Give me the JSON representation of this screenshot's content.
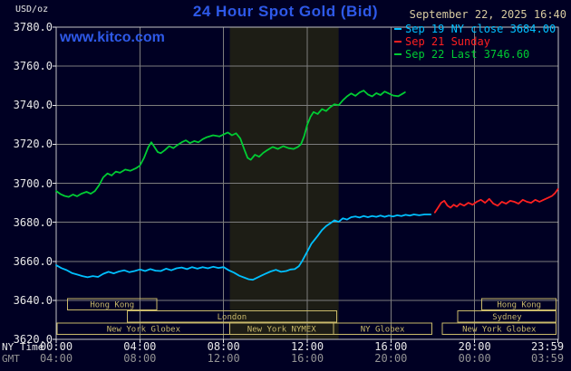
{
  "header": {
    "unit_label": "USD/oz",
    "title": "24 Hour Spot Gold (Bid)",
    "datetime": "September 22, 2025 16:40",
    "watermark": "www.kitco.com"
  },
  "colors": {
    "background": "#000023",
    "title_blue": "#2e59e8",
    "date_tan": "#d8cba0",
    "axis_white": "#e8e8e8",
    "gmt_gray": "#949494",
    "grid_gray": "#7d7d7d",
    "session_tan": "#c9b96a",
    "shade": "#1d1d15",
    "cyan_series": "#00c0ff",
    "red_series": "#ff2020",
    "green_series": "#00cc33"
  },
  "legend": [
    {
      "id": "sep19",
      "label": "Sep 19 NY close 3684.00",
      "color": "#00c0ff"
    },
    {
      "id": "sep21",
      "label": "Sep 21 Sunday",
      "color": "#ff2020"
    },
    {
      "id": "sep22",
      "label": "Sep 22 Last 3746.60",
      "color": "#00cc33"
    }
  ],
  "axis": {
    "ny_time_label": "NY Time",
    "gmt_label": "GMT"
  },
  "sessions": [
    {
      "label": "Hong Kong",
      "row": 0,
      "start_hour": 0.55,
      "end_hour": 4.8
    },
    {
      "label": "Hong Kong",
      "row": 0,
      "start_hour": 20.35,
      "end_hour": 23.9
    },
    {
      "label": "London",
      "row": 1,
      "start_hour": 3.4,
      "end_hour": 13.4
    },
    {
      "label": "Sydney",
      "row": 1,
      "start_hour": 19.2,
      "end_hour": 23.9
    },
    {
      "label": "New York Globex",
      "row": 2,
      "start_hour": 0.05,
      "end_hour": 8.3
    },
    {
      "label": "New York NYMEX",
      "row": 2,
      "start_hour": 8.3,
      "end_hour": 13.25
    },
    {
      "label": "NY Globex",
      "row": 2,
      "start_hour": 13.25,
      "end_hour": 17.95
    },
    {
      "label": "New York Globex",
      "row": 2,
      "start_hour": 18.45,
      "end_hour": 23.9
    }
  ],
  "chart_data": {
    "type": "line",
    "title": "24 Hour Spot Gold (Bid)",
    "xlabel": "NY Time / GMT",
    "ylabel": "USD/oz",
    "xlim": [
      0,
      24
    ],
    "ylim": [
      3620,
      3780
    ],
    "grid": true,
    "legend_position": "top-right",
    "shaded_band_hours": [
      8.3,
      13.5
    ],
    "y_ticks": [
      3780,
      3760,
      3740,
      3720,
      3700,
      3680,
      3660,
      3640,
      3620
    ],
    "x_ticks": [
      {
        "hour": 0,
        "ny": "00:00",
        "gmt": "04:00"
      },
      {
        "hour": 4,
        "ny": "04:00",
        "gmt": "08:00"
      },
      {
        "hour": 8,
        "ny": "08:00",
        "gmt": "12:00"
      },
      {
        "hour": 12,
        "ny": "12:00",
        "gmt": "16:00"
      },
      {
        "hour": 16,
        "ny": "16:00",
        "gmt": "20:00"
      },
      {
        "hour": 20,
        "ny": "20:00",
        "gmt": "00:00"
      },
      {
        "hour": 23.983,
        "ny": "23:59",
        "gmt": "03:59"
      }
    ],
    "series": [
      {
        "id": "sep19",
        "name": "Sep 19 NY close 3684.00",
        "close": 3684.0,
        "color": "#00c0ff",
        "points": [
          [
            0,
            3658
          ],
          [
            0.25,
            3656.5
          ],
          [
            0.5,
            3655.5
          ],
          [
            0.75,
            3654
          ],
          [
            1,
            3653.2
          ],
          [
            1.25,
            3652.4
          ],
          [
            1.5,
            3651.8
          ],
          [
            1.75,
            3652.4
          ],
          [
            2,
            3652
          ],
          [
            2.25,
            3653.6
          ],
          [
            2.5,
            3654.6
          ],
          [
            2.75,
            3653.8
          ],
          [
            3,
            3654.8
          ],
          [
            3.25,
            3655.4
          ],
          [
            3.5,
            3654.4
          ],
          [
            3.75,
            3655
          ],
          [
            4,
            3655.8
          ],
          [
            4.25,
            3655
          ],
          [
            4.5,
            3656
          ],
          [
            4.75,
            3655.2
          ],
          [
            5,
            3655
          ],
          [
            5.25,
            3656.2
          ],
          [
            5.5,
            3655.4
          ],
          [
            5.75,
            3656.4
          ],
          [
            6,
            3656.8
          ],
          [
            6.25,
            3656
          ],
          [
            6.5,
            3657
          ],
          [
            6.75,
            3656.2
          ],
          [
            7,
            3657
          ],
          [
            7.25,
            3656.4
          ],
          [
            7.5,
            3657.2
          ],
          [
            7.75,
            3656.6
          ],
          [
            8,
            3657
          ],
          [
            8.25,
            3655.4
          ],
          [
            8.5,
            3654.2
          ],
          [
            8.75,
            3652.6
          ],
          [
            9,
            3651.6
          ],
          [
            9.2,
            3650.8
          ],
          [
            9.4,
            3650.5
          ],
          [
            9.6,
            3651.6
          ],
          [
            9.8,
            3652.6
          ],
          [
            10,
            3653.6
          ],
          [
            10.25,
            3654.8
          ],
          [
            10.5,
            3655.6
          ],
          [
            10.75,
            3654.6
          ],
          [
            11,
            3655
          ],
          [
            11.2,
            3655.8
          ],
          [
            11.4,
            3656
          ],
          [
            11.6,
            3657.5
          ],
          [
            11.75,
            3660
          ],
          [
            11.9,
            3663
          ],
          [
            12.05,
            3666
          ],
          [
            12.2,
            3669
          ],
          [
            12.35,
            3671
          ],
          [
            12.5,
            3673
          ],
          [
            12.7,
            3676
          ],
          [
            12.9,
            3678
          ],
          [
            13.1,
            3679.5
          ],
          [
            13.3,
            3681
          ],
          [
            13.5,
            3680.2
          ],
          [
            13.7,
            3682
          ],
          [
            13.9,
            3681.4
          ],
          [
            14.1,
            3682.6
          ],
          [
            14.3,
            3683
          ],
          [
            14.5,
            3682.4
          ],
          [
            14.7,
            3683.2
          ],
          [
            14.9,
            3682.6
          ],
          [
            15.1,
            3683.2
          ],
          [
            15.3,
            3682.8
          ],
          [
            15.5,
            3683.4
          ],
          [
            15.7,
            3682.8
          ],
          [
            15.9,
            3683.4
          ],
          [
            16.1,
            3683
          ],
          [
            16.3,
            3683.6
          ],
          [
            16.5,
            3683.2
          ],
          [
            16.7,
            3683.8
          ],
          [
            16.9,
            3683.4
          ],
          [
            17.1,
            3684
          ],
          [
            17.35,
            3683.6
          ],
          [
            17.6,
            3684
          ],
          [
            17.9,
            3684
          ]
        ]
      },
      {
        "id": "sep21",
        "name": "Sep 21 Sunday",
        "color": "#ff2020",
        "points": [
          [
            18.1,
            3685
          ],
          [
            18.25,
            3687.5
          ],
          [
            18.4,
            3690
          ],
          [
            18.55,
            3691
          ],
          [
            18.7,
            3688.5
          ],
          [
            18.85,
            3687.5
          ],
          [
            19,
            3689
          ],
          [
            19.15,
            3688
          ],
          [
            19.3,
            3689.5
          ],
          [
            19.5,
            3688.5
          ],
          [
            19.7,
            3690
          ],
          [
            19.9,
            3689
          ],
          [
            20.1,
            3690.5
          ],
          [
            20.3,
            3691.5
          ],
          [
            20.5,
            3690
          ],
          [
            20.7,
            3692
          ],
          [
            20.9,
            3689.5
          ],
          [
            21.1,
            3688.5
          ],
          [
            21.3,
            3690.5
          ],
          [
            21.5,
            3689.5
          ],
          [
            21.7,
            3691
          ],
          [
            21.9,
            3690.5
          ],
          [
            22.1,
            3689.5
          ],
          [
            22.3,
            3691.5
          ],
          [
            22.5,
            3690.5
          ],
          [
            22.7,
            3690
          ],
          [
            22.9,
            3691.5
          ],
          [
            23.1,
            3690.5
          ],
          [
            23.3,
            3691.5
          ],
          [
            23.5,
            3692.5
          ],
          [
            23.7,
            3693.5
          ],
          [
            23.85,
            3695
          ],
          [
            23.98,
            3697
          ]
        ]
      },
      {
        "id": "sep22",
        "name": "Sep 22 Last 3746.60",
        "last": 3746.6,
        "color": "#00cc33",
        "points": [
          [
            0,
            3696
          ],
          [
            0.2,
            3694.5
          ],
          [
            0.4,
            3693.5
          ],
          [
            0.6,
            3693
          ],
          [
            0.8,
            3694.2
          ],
          [
            1,
            3693.3
          ],
          [
            1.2,
            3694.6
          ],
          [
            1.45,
            3695.6
          ],
          [
            1.65,
            3694.6
          ],
          [
            1.85,
            3696
          ],
          [
            2.05,
            3699
          ],
          [
            2.25,
            3703
          ],
          [
            2.45,
            3705
          ],
          [
            2.65,
            3704
          ],
          [
            2.85,
            3706
          ],
          [
            3.05,
            3705.4
          ],
          [
            3.3,
            3707
          ],
          [
            3.55,
            3706.4
          ],
          [
            3.8,
            3707.6
          ],
          [
            4,
            3709
          ],
          [
            4.2,
            3713
          ],
          [
            4.4,
            3718.5
          ],
          [
            4.55,
            3721
          ],
          [
            4.7,
            3718.5
          ],
          [
            4.85,
            3716
          ],
          [
            5,
            3715.4
          ],
          [
            5.2,
            3717
          ],
          [
            5.4,
            3719
          ],
          [
            5.6,
            3718
          ],
          [
            5.8,
            3719.6
          ],
          [
            6,
            3721
          ],
          [
            6.2,
            3722
          ],
          [
            6.4,
            3720.6
          ],
          [
            6.6,
            3721.6
          ],
          [
            6.8,
            3721
          ],
          [
            7,
            3722.6
          ],
          [
            7.2,
            3723.6
          ],
          [
            7.5,
            3724.6
          ],
          [
            7.8,
            3724
          ],
          [
            8,
            3725
          ],
          [
            8.2,
            3726
          ],
          [
            8.4,
            3724.6
          ],
          [
            8.6,
            3725.6
          ],
          [
            8.8,
            3723
          ],
          [
            9,
            3717
          ],
          [
            9.15,
            3713
          ],
          [
            9.3,
            3712
          ],
          [
            9.5,
            3714.6
          ],
          [
            9.7,
            3713.6
          ],
          [
            9.9,
            3715.6
          ],
          [
            10.1,
            3717
          ],
          [
            10.35,
            3718.6
          ],
          [
            10.6,
            3717.6
          ],
          [
            10.85,
            3719
          ],
          [
            11.1,
            3718
          ],
          [
            11.35,
            3717.6
          ],
          [
            11.55,
            3718.6
          ],
          [
            11.7,
            3720
          ],
          [
            11.85,
            3724
          ],
          [
            12,
            3730
          ],
          [
            12.15,
            3734
          ],
          [
            12.3,
            3736.5
          ],
          [
            12.5,
            3735.5
          ],
          [
            12.7,
            3738
          ],
          [
            12.9,
            3737
          ],
          [
            13.1,
            3739
          ],
          [
            13.3,
            3740.5
          ],
          [
            13.5,
            3740
          ],
          [
            13.7,
            3742.5
          ],
          [
            13.9,
            3744.5
          ],
          [
            14.1,
            3746
          ],
          [
            14.3,
            3744.8
          ],
          [
            14.5,
            3746.5
          ],
          [
            14.7,
            3747.5
          ],
          [
            14.9,
            3745.5
          ],
          [
            15.1,
            3744.5
          ],
          [
            15.3,
            3746.2
          ],
          [
            15.5,
            3745.2
          ],
          [
            15.7,
            3747
          ],
          [
            15.9,
            3746
          ],
          [
            16.1,
            3745
          ],
          [
            16.35,
            3744.6
          ],
          [
            16.55,
            3745.8
          ],
          [
            16.67,
            3746.6
          ]
        ]
      }
    ]
  }
}
